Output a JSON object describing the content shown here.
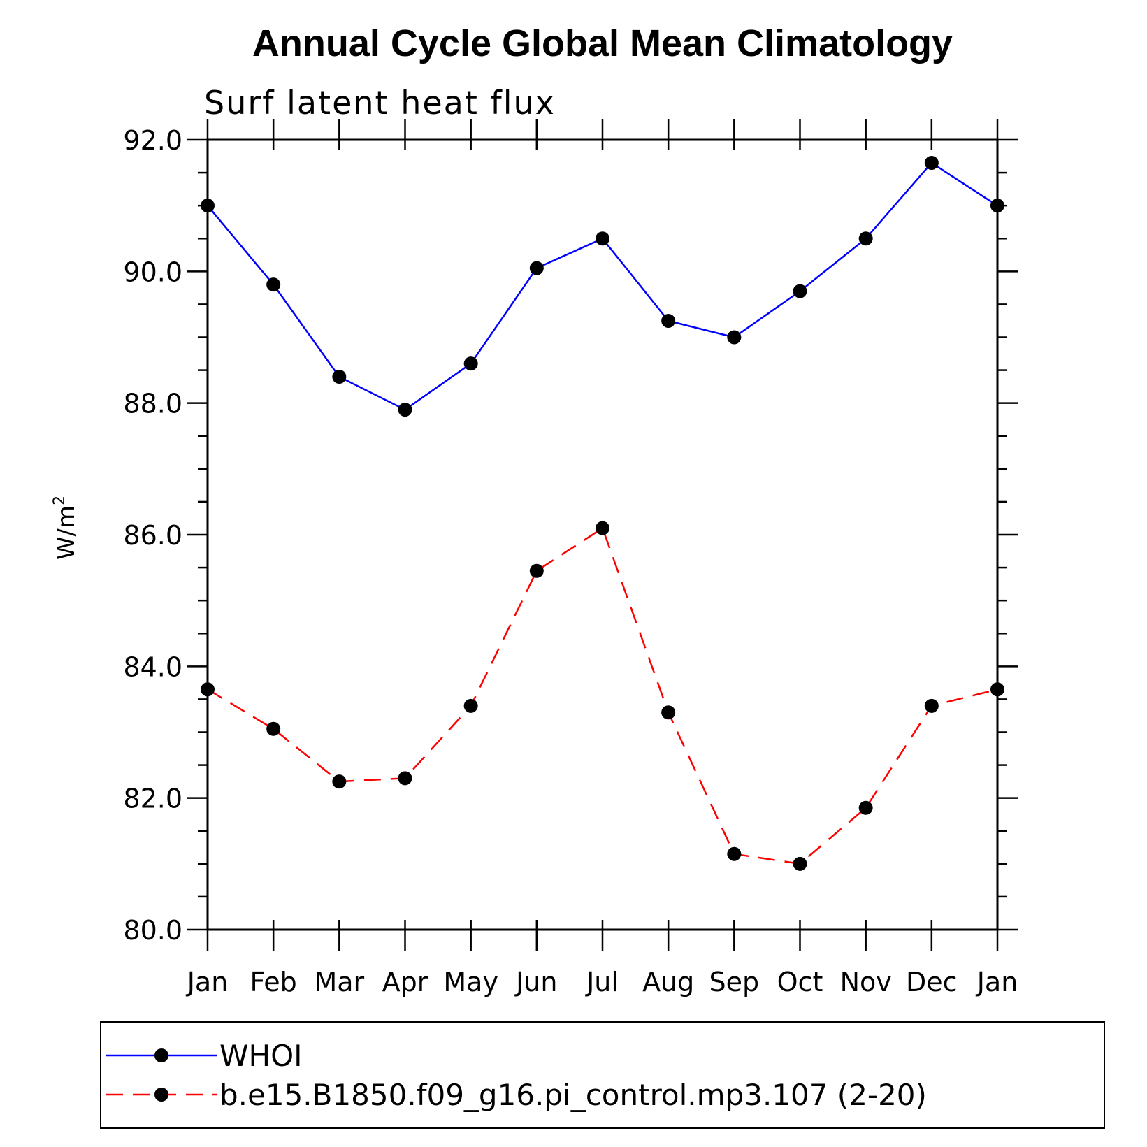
{
  "chart_data": {
    "type": "line",
    "title": "Annual Cycle Global Mean Climatology",
    "subtitle": "Surf latent heat flux",
    "ylabel": "W/m",
    "ylabel_superscript": "2",
    "xlabel": "",
    "ylim": [
      80.0,
      92.0
    ],
    "yticks": [
      "80.0",
      "82.0",
      "84.0",
      "86.0",
      "88.0",
      "90.0",
      "92.0"
    ],
    "categories": [
      "Jan",
      "Feb",
      "Mar",
      "Apr",
      "May",
      "Jun",
      "Jul",
      "Aug",
      "Sep",
      "Oct",
      "Nov",
      "Dec",
      "Jan"
    ],
    "grid": false,
    "legend_position": "bottom",
    "series": [
      {
        "name": "WHOI",
        "color": "#0000ff",
        "dash": "solid",
        "marker": "circle",
        "values": [
          91.0,
          89.8,
          88.4,
          87.9,
          88.6,
          90.05,
          90.5,
          89.25,
          89.0,
          89.7,
          90.5,
          91.65,
          91.0
        ]
      },
      {
        "name": "b.e15.B1850.f09_g16.pi_control.mp3.107 (2-20)",
        "color": "#ff0000",
        "dash": "dashed",
        "marker": "circle",
        "values": [
          83.65,
          83.05,
          82.25,
          82.3,
          83.4,
          85.45,
          86.1,
          83.3,
          81.15,
          81.0,
          81.85,
          83.4,
          83.65
        ]
      }
    ]
  }
}
